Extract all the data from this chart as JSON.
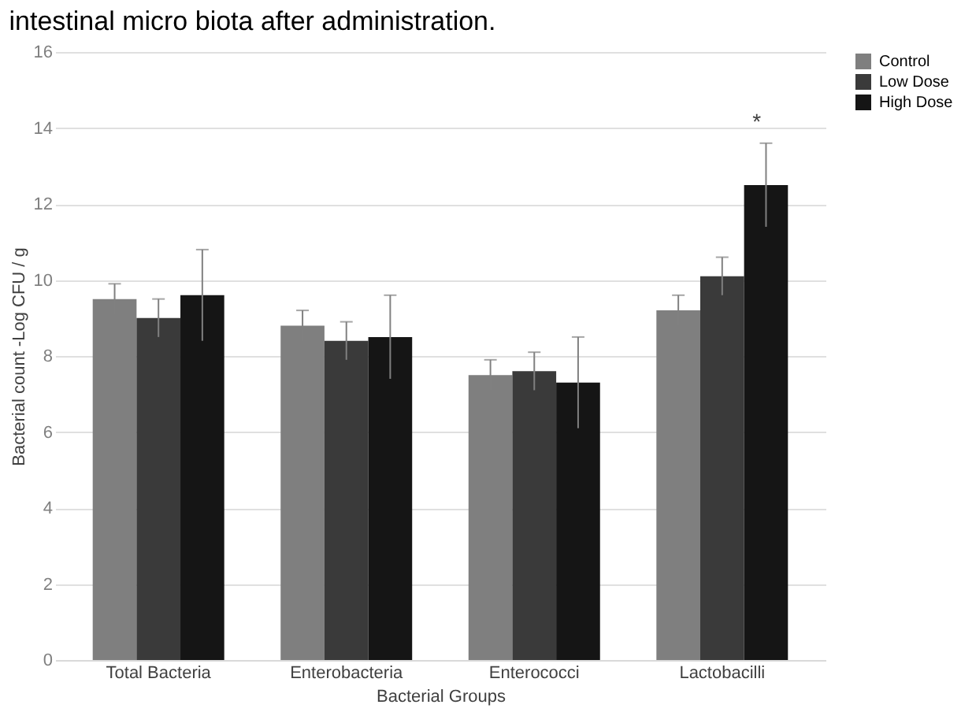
{
  "chart_data": {
    "type": "bar",
    "title": "intestinal micro biota after administration.",
    "categories": [
      "Total Bacteria",
      "Enterobacteria",
      "Enterococci",
      "Lactobacilli"
    ],
    "xlabel": "Bacterial Groups",
    "ylabel": "Bacterial count -Log CFU / g",
    "series": [
      {
        "name": "Control",
        "color": "#7f7f7f",
        "values": [
          9.5,
          8.8,
          7.5,
          9.2
        ],
        "errors": [
          0.4,
          0.4,
          0.4,
          0.4
        ]
      },
      {
        "name": "Low Dose",
        "color": "#3a3a3a",
        "values": [
          9.0,
          8.4,
          7.6,
          10.1
        ],
        "errors": [
          0.5,
          0.5,
          0.5,
          0.5
        ]
      },
      {
        "name": "High Dose",
        "color": "#151515",
        "values": [
          9.6,
          8.5,
          7.3,
          12.5
        ],
        "errors": [
          1.2,
          1.1,
          1.2,
          1.1
        ]
      }
    ],
    "annotations": [
      "*"
    ],
    "ylim": [
      0,
      16
    ],
    "yticks": [
      0,
      2,
      4,
      6,
      8,
      10,
      12,
      14,
      16
    ],
    "grid": "y",
    "legend": "right"
  }
}
